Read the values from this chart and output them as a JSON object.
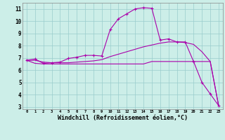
{
  "background_color": "#cceee8",
  "grid_color": "#99cccc",
  "line_color": "#aa00aa",
  "xlim": [
    -0.5,
    23.5
  ],
  "ylim": [
    2.8,
    11.5
  ],
  "xlabel": "Windchill (Refroidissement éolien,°C)",
  "xlabel_fontsize": 6,
  "xtick_labels": [
    "0",
    "1",
    "2",
    "3",
    "4",
    "5",
    "6",
    "7",
    "8",
    "9",
    "10",
    "11",
    "12",
    "13",
    "14",
    "15",
    "16",
    "17",
    "18",
    "19",
    "20",
    "21",
    "22",
    "23"
  ],
  "yticks": [
    3,
    4,
    5,
    6,
    7,
    8,
    9,
    10,
    11
  ],
  "ytick_labels": [
    "3",
    "4",
    "5",
    "6",
    "7",
    "8",
    "9",
    "10",
    "11"
  ],
  "series1_x": [
    0,
    1,
    2,
    3,
    4,
    5,
    6,
    7,
    8,
    9,
    10,
    11,
    12,
    13,
    14,
    15,
    16,
    17,
    18,
    19,
    20,
    21,
    22,
    23
  ],
  "series1_y": [
    6.8,
    6.9,
    6.55,
    6.6,
    6.65,
    6.95,
    7.05,
    7.2,
    7.2,
    7.15,
    9.3,
    10.2,
    10.6,
    11.0,
    11.1,
    11.05,
    8.45,
    8.55,
    8.3,
    8.3,
    6.7,
    5.0,
    4.05,
    3.1
  ],
  "series2_x": [
    0,
    1,
    2,
    3,
    4,
    5,
    6,
    7,
    8,
    9,
    10,
    11,
    12,
    13,
    14,
    15,
    16,
    17,
    18,
    19,
    20,
    21,
    22,
    23
  ],
  "series2_y": [
    6.8,
    6.8,
    6.65,
    6.6,
    6.6,
    6.6,
    6.65,
    6.7,
    6.75,
    6.85,
    7.1,
    7.3,
    7.5,
    7.7,
    7.9,
    8.05,
    8.2,
    8.3,
    8.3,
    8.25,
    8.1,
    7.5,
    6.7,
    3.1
  ],
  "series3_x": [
    0,
    1,
    2,
    3,
    4,
    5,
    6,
    7,
    8,
    9,
    10,
    11,
    12,
    13,
    14,
    15,
    16,
    17,
    18,
    19,
    20,
    21,
    22,
    23
  ],
  "series3_y": [
    6.8,
    6.55,
    6.5,
    6.5,
    6.5,
    6.5,
    6.5,
    6.5,
    6.5,
    6.5,
    6.5,
    6.5,
    6.5,
    6.5,
    6.5,
    6.7,
    6.7,
    6.7,
    6.7,
    6.7,
    6.7,
    6.7,
    6.7,
    3.1
  ]
}
